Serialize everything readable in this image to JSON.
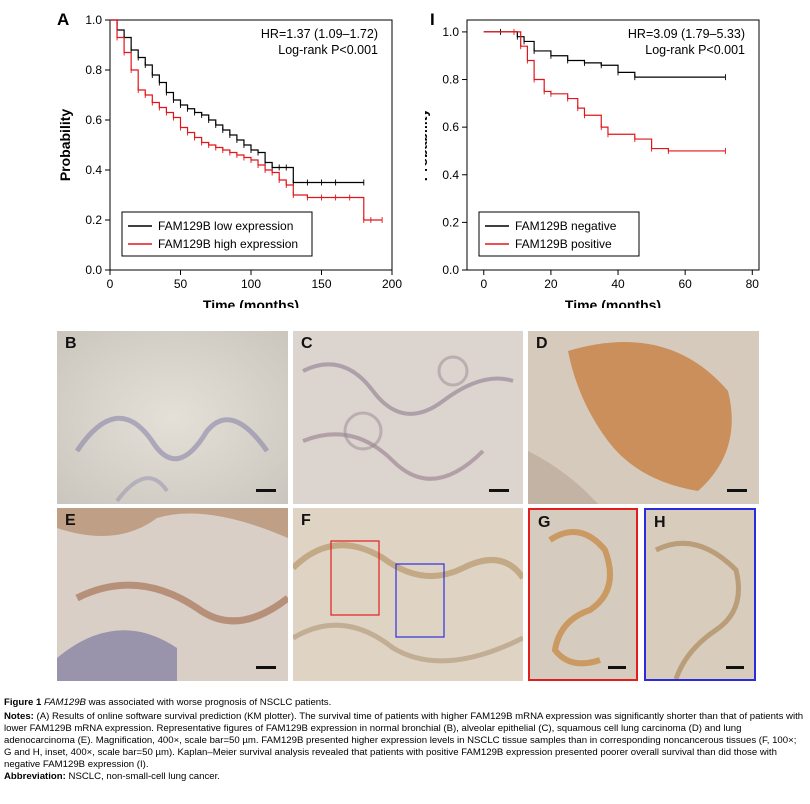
{
  "charts": {
    "A": {
      "letter": "A",
      "hr_text": "HR=1.37 (1.09–1.72)",
      "logrank_text": "Log-rank P<0.001"
    },
    "I": {
      "letter": "I",
      "hr_text": "HR=3.09 (1.79–5.33)",
      "logrank_text": "Log-rank P<0.001"
    }
  },
  "chart_data": [
    {
      "type": "line",
      "panel": "A",
      "xlabel": "Time (months)",
      "ylabel": "Probability",
      "xlim": [
        0,
        200
      ],
      "ylim": [
        0,
        1.0
      ],
      "xticks": [
        "0",
        "50",
        "100",
        "150",
        "200"
      ],
      "yticks": [
        "0.0",
        "0.2",
        "0.4",
        "0.6",
        "0.8",
        "1.0"
      ],
      "legend_position": "bottom-left",
      "series": [
        {
          "name": "FAM129B low expression",
          "color": "#000000",
          "x": [
            0,
            5,
            10,
            15,
            20,
            25,
            30,
            35,
            40,
            45,
            50,
            55,
            60,
            65,
            70,
            75,
            80,
            85,
            90,
            95,
            100,
            105,
            110,
            115,
            120,
            125,
            130,
            140,
            150,
            160,
            180
          ],
          "y": [
            1.0,
            0.96,
            0.93,
            0.88,
            0.85,
            0.82,
            0.78,
            0.75,
            0.71,
            0.68,
            0.66,
            0.645,
            0.63,
            0.62,
            0.6,
            0.58,
            0.56,
            0.54,
            0.52,
            0.5,
            0.48,
            0.47,
            0.43,
            0.41,
            0.41,
            0.41,
            0.35,
            0.35,
            0.35,
            0.35,
            0.35
          ]
        },
        {
          "name": "FAM129B high expression",
          "color": "#e0161b",
          "x": [
            0,
            5,
            10,
            15,
            20,
            25,
            30,
            35,
            40,
            45,
            50,
            55,
            60,
            65,
            70,
            75,
            80,
            85,
            90,
            95,
            100,
            105,
            110,
            115,
            120,
            125,
            130,
            140,
            150,
            160,
            170,
            180,
            185,
            193
          ],
          "y": [
            1.0,
            0.93,
            0.87,
            0.8,
            0.72,
            0.7,
            0.67,
            0.65,
            0.63,
            0.61,
            0.57,
            0.55,
            0.53,
            0.51,
            0.5,
            0.49,
            0.48,
            0.47,
            0.46,
            0.45,
            0.44,
            0.42,
            0.4,
            0.39,
            0.36,
            0.34,
            0.3,
            0.29,
            0.29,
            0.29,
            0.29,
            0.2,
            0.2,
            0.2
          ]
        }
      ]
    },
    {
      "type": "line",
      "panel": "I",
      "xlabel": "Time (months)",
      "ylabel": "Probability",
      "xlim": [
        -5,
        82
      ],
      "ylim": [
        0,
        1.05
      ],
      "xticks": [
        "0",
        "20",
        "40",
        "60",
        "80"
      ],
      "yticks": [
        "0.0",
        "0.2",
        "0.4",
        "0.6",
        "0.8",
        "1.0"
      ],
      "legend_position": "bottom-left",
      "series": [
        {
          "name": "FAM129B negative",
          "color": "#000000",
          "x": [
            0,
            5,
            10,
            12,
            15,
            20,
            25,
            30,
            35,
            40,
            45,
            72
          ],
          "y": [
            1.0,
            1.0,
            0.98,
            0.96,
            0.92,
            0.9,
            0.88,
            0.87,
            0.86,
            0.83,
            0.81,
            0.81
          ]
        },
        {
          "name": "FAM129B positive",
          "color": "#e0161b",
          "x": [
            0,
            9,
            11,
            13,
            15,
            18,
            20,
            25,
            28,
            30,
            35,
            37,
            45,
            50,
            55,
            72
          ],
          "y": [
            1.0,
            1.0,
            0.94,
            0.88,
            0.8,
            0.75,
            0.74,
            0.72,
            0.68,
            0.65,
            0.6,
            0.57,
            0.55,
            0.51,
            0.5,
            0.5
          ]
        }
      ]
    }
  ],
  "panels": [
    {
      "letter": "B",
      "tone": "#d8d4cc"
    },
    {
      "letter": "C",
      "tone": "#d9d2cc"
    },
    {
      "letter": "D",
      "tone": "#c79566"
    },
    {
      "letter": "E",
      "tone": "#b79b86"
    },
    {
      "letter": "F",
      "tone": "#d8c9b2"
    },
    {
      "letter": "G",
      "tone": "#d5b996"
    },
    {
      "letter": "H",
      "tone": "#d2c2ae"
    }
  ],
  "caption": {
    "figure_label": "Figure 1",
    "title_gene": "FAM129B",
    "title_rest": " was associated with worse prognosis of NSCLC patients.",
    "notes_label": "Notes:",
    "notes_text": " (A) Results of online software survival prediction (KM plotter). The survival time of patients with higher FAM129B mRNA expression was significantly shorter than that of patients with lower FAM129B mRNA expression. Representative figures of FAM129B expression in normal bronchial (B), alveolar epithelial (C), squamous cell lung carcinoma (D) and lung adenocarcinoma (E). Magnification, 400×, scale bar=50 µm. FAM129B presented higher expression levels in NSCLC tissue samples than in corresponding noncancerous tissues (F, 100×; G and H, inset, 400×, scale bar=50 µm). Kaplan–Meier survival analysis revealed that patients with positive FAM129B expression presented poorer overall survival than did those with negative FAM129B expression (I).",
    "abbrev_label": "Abbreviation:",
    "abbrev_text": " NSCLC, non-small-cell lung cancer."
  }
}
